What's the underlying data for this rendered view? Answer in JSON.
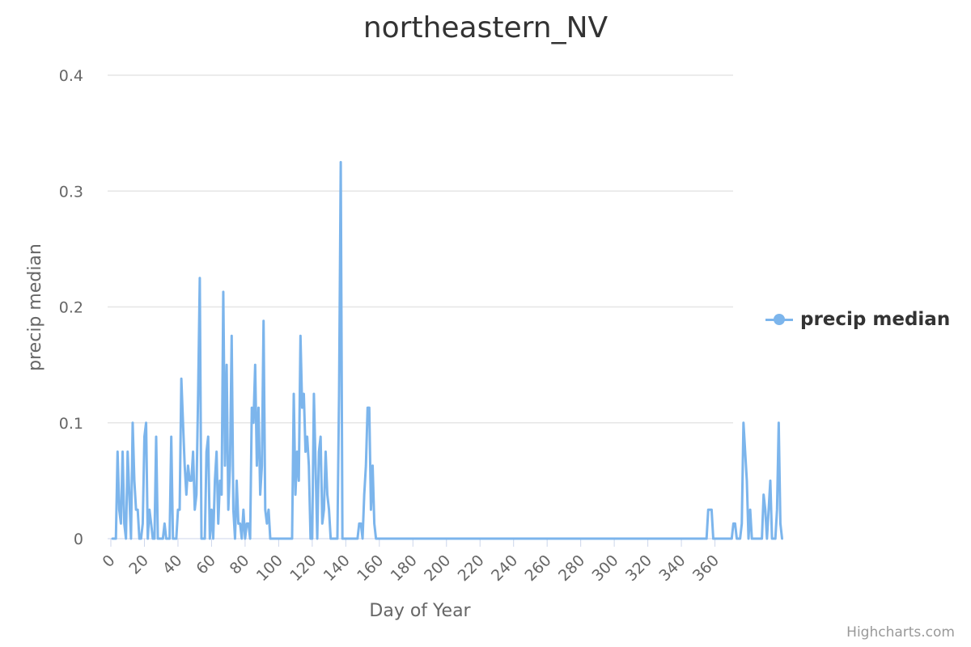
{
  "chart_data": {
    "type": "line",
    "title": "northeastern_NV",
    "xlabel": "Day of Year",
    "ylabel": "precip median",
    "xlim": [
      0,
      366
    ],
    "ylim": [
      0,
      0.4
    ],
    "xticks": [
      0,
      20,
      40,
      60,
      80,
      100,
      120,
      140,
      160,
      180,
      200,
      220,
      240,
      260,
      280,
      300,
      320,
      340,
      360
    ],
    "yticks": [
      0,
      0.1,
      0.2,
      0.3,
      0.4
    ],
    "ytick_labels": [
      "0",
      "0.1",
      "0.2",
      "0.3",
      "0.4"
    ],
    "grid": true,
    "legend_position": "right",
    "series": [
      {
        "name": "precip median",
        "color": "#7cb5ec",
        "values": [
          0,
          0,
          0,
          0.075,
          0.025,
          0.013,
          0.075,
          0.013,
          0,
          0.075,
          0.038,
          0,
          0.1,
          0.05,
          0.025,
          0.025,
          0,
          0,
          0.013,
          0.088,
          0.1,
          0,
          0.025,
          0.013,
          0,
          0,
          0.088,
          0,
          0,
          0,
          0,
          0.013,
          0,
          0,
          0,
          0.088,
          0,
          0,
          0,
          0.025,
          0.025,
          0.138,
          0.1,
          0.063,
          0.038,
          0.063,
          0.05,
          0.05,
          0.075,
          0.025,
          0.038,
          0.125,
          0.225,
          0,
          0,
          0,
          0.075,
          0.088,
          0,
          0.025,
          0,
          0.05,
          0.075,
          0.013,
          0.05,
          0.038,
          0.213,
          0.063,
          0.15,
          0.025,
          0.063,
          0.175,
          0.025,
          0,
          0.05,
          0.013,
          0.013,
          0,
          0.025,
          0,
          0.013,
          0.013,
          0,
          0.113,
          0.1,
          0.15,
          0.063,
          0.113,
          0.038,
          0.063,
          0.188,
          0.025,
          0.013,
          0.025,
          0,
          0,
          0,
          0,
          0,
          0,
          0,
          0,
          0,
          0,
          0,
          0,
          0,
          0,
          0.125,
          0.038,
          0.075,
          0.05,
          0.175,
          0.113,
          0.125,
          0.075,
          0.088,
          0.063,
          0,
          0,
          0.125,
          0.063,
          0,
          0.075,
          0.088,
          0.013,
          0.025,
          0.075,
          0.038,
          0.025,
          0,
          0,
          0,
          0,
          0,
          0.125,
          0.325,
          0,
          0,
          0,
          0,
          0,
          0,
          0,
          0,
          0,
          0,
          0.013,
          0.013,
          0,
          0.038,
          0.063,
          0.113,
          0.113,
          0.025,
          0.063,
          0.013,
          0,
          0,
          0,
          0,
          0,
          0,
          0,
          0,
          0,
          0,
          0,
          0,
          0,
          0,
          0,
          0,
          0,
          0,
          0,
          0,
          0,
          0,
          0,
          0,
          0,
          0,
          0,
          0,
          0,
          0,
          0,
          0,
          0,
          0,
          0,
          0,
          0,
          0,
          0,
          0,
          0,
          0,
          0,
          0,
          0,
          0,
          0,
          0,
          0,
          0,
          0,
          0,
          0,
          0,
          0,
          0,
          0,
          0,
          0,
          0,
          0,
          0,
          0,
          0,
          0,
          0,
          0,
          0,
          0,
          0,
          0,
          0,
          0,
          0,
          0,
          0,
          0,
          0,
          0,
          0,
          0,
          0,
          0,
          0,
          0,
          0,
          0,
          0,
          0,
          0,
          0,
          0,
          0,
          0,
          0,
          0,
          0,
          0,
          0,
          0,
          0,
          0,
          0,
          0,
          0,
          0,
          0,
          0,
          0,
          0,
          0,
          0,
          0,
          0,
          0,
          0,
          0,
          0,
          0,
          0,
          0,
          0,
          0,
          0,
          0,
          0,
          0,
          0,
          0,
          0,
          0,
          0,
          0,
          0,
          0,
          0,
          0,
          0,
          0,
          0,
          0,
          0,
          0,
          0,
          0,
          0,
          0,
          0,
          0,
          0,
          0,
          0,
          0,
          0,
          0,
          0,
          0,
          0,
          0,
          0,
          0,
          0,
          0,
          0,
          0,
          0,
          0,
          0,
          0,
          0,
          0,
          0,
          0,
          0,
          0,
          0,
          0,
          0,
          0,
          0,
          0,
          0,
          0,
          0,
          0,
          0,
          0,
          0,
          0,
          0,
          0,
          0,
          0,
          0,
          0,
          0,
          0,
          0,
          0.025,
          0.025,
          0.025,
          0,
          0,
          0,
          0,
          0,
          0,
          0,
          0,
          0,
          0,
          0,
          0,
          0.013,
          0.013,
          0,
          0,
          0,
          0.013,
          0.1,
          0.075,
          0.05,
          0,
          0.025,
          0,
          0,
          0,
          0,
          0,
          0,
          0,
          0.038,
          0.025,
          0,
          0.025,
          0.05,
          0,
          0,
          0,
          0.025,
          0.1,
          0.013,
          0
        ]
      }
    ]
  },
  "legend": {
    "label": "precip median"
  },
  "credits": "Highcharts.com"
}
